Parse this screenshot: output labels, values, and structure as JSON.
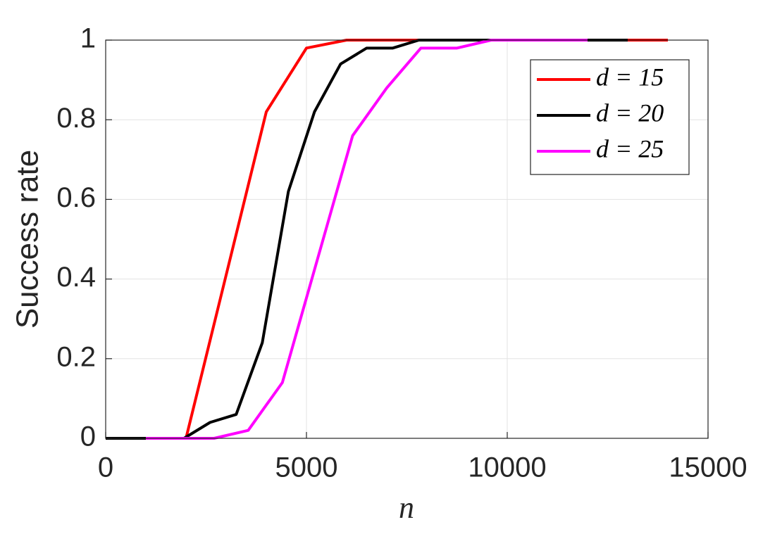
{
  "chart_data": {
    "type": "line",
    "x_label": "n",
    "y_label": "Success rate",
    "xlim": [
      0,
      15000
    ],
    "ylim": [
      0,
      1
    ],
    "xticks": [
      0,
      5000,
      10000,
      15000
    ],
    "yticks": [
      0,
      0.2,
      0.4,
      0.6,
      0.8,
      1
    ],
    "grid": true,
    "legend": "upper right",
    "series": [
      {
        "name": "d = 15",
        "color": "#ff0000",
        "x": [
          0,
          1000,
          2000,
          3000,
          4000,
          5000,
          6000,
          7000,
          8000,
          9000,
          10000,
          11000,
          12000,
          13000,
          14000
        ],
        "values": [
          0,
          0,
          0,
          0.41,
          0.82,
          0.98,
          1,
          1,
          1,
          1,
          1,
          1,
          1,
          1,
          1
        ]
      },
      {
        "name": "d = 20",
        "color": "#000000",
        "x": [
          0,
          650,
          1300,
          1950,
          2600,
          3250,
          3900,
          4550,
          5200,
          5850,
          6500,
          7150,
          7800,
          8450,
          9100,
          9750,
          10400,
          11050,
          11700,
          12350,
          13000
        ],
        "values": [
          0,
          0,
          0,
          0,
          0.04,
          0.06,
          0.24,
          0.62,
          0.82,
          0.94,
          0.98,
          0.98,
          1,
          1,
          1,
          1,
          1,
          1,
          1,
          1,
          1
        ]
      },
      {
        "name": "d = 25",
        "color": "#ff00ff",
        "x": [
          1000,
          2000,
          2700,
          3550,
          4400,
          6150,
          7000,
          7850,
          8750,
          9600,
          10500,
          11300,
          12000
        ],
        "values": [
          0,
          0,
          0,
          0.02,
          0.14,
          0.76,
          0.88,
          0.98,
          0.98,
          1,
          1,
          1,
          1
        ]
      }
    ]
  }
}
